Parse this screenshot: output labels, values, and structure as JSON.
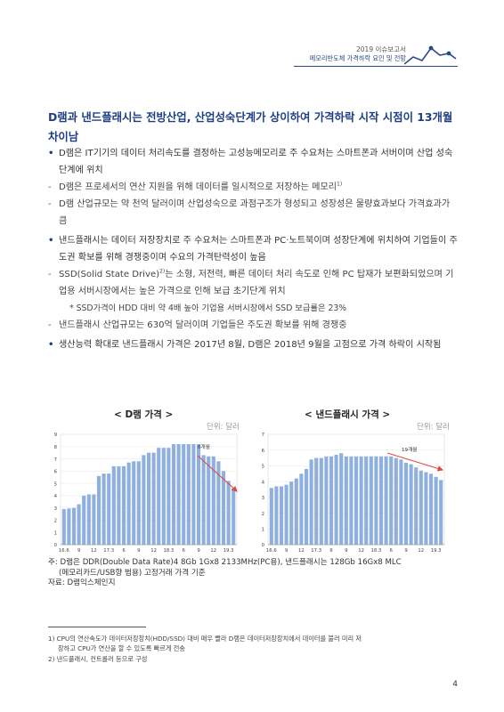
{
  "header": {
    "title": "2019 이슈보고서",
    "subtitle": "메모리반도체 가격하락 요인 및 전망",
    "accent": "#2a4a8a"
  },
  "heading": "D램과 낸드플래시는 전방산업, 산업성숙단계가 상이하여 가격하락 시작 시점이 13개월 차이남",
  "bullets": [
    {
      "kind": "bullet",
      "text": "D램은 IT기기의 데이터 처리속도를 결정하는 고성능메모리로 주 수요처는 스마트폰과 서버이며 산업 성숙단계에 위치"
    },
    {
      "kind": "dash",
      "text": "D램은 프로세서의 연산 지원을 위해 데이터를 일시적으로 저장하는 메모리",
      "sup": "1)"
    },
    {
      "kind": "dash",
      "text": "D램 산업규모는 약 천억 달러이며 산업성숙으로 과점구조가 형성되고 성장성은 물량효과보다 가격효과가 큼"
    },
    {
      "kind": "bullet",
      "text": "낸드플래시는 데이터 저장장치로 주 수요처는 스마트폰과 PC·노트북이며 성장단계에 위치하여 기업들이 주도권 확보를 위해 경쟁중이며 수요의 가격탄력성이 높음"
    },
    {
      "kind": "dash",
      "text_a": "SSD(Solid State Drive)",
      "sup": "2)",
      "text_b": "는 소형, 저전력, 빠른 데이터 처리 속도로 인해 PC 탑재가 보편화되었으며 기업용 서버시장에서는 높은 가격으로 인해 보급 초기단계 위치"
    },
    {
      "kind": "note",
      "text": "* SSD가격이 HDD 대비 약 4배 높아 기업용 서버시장에서 SSD 보급률은 23%"
    },
    {
      "kind": "dash",
      "text": "낸드플래시 산업규모는 630억 달러이며 기업들은 주도권 확보를 위해 경쟁중"
    },
    {
      "kind": "bullet",
      "text": "생산능력 확대로 낸드플래시 가격은 2017년 8월, D램은 2018년 9월을 고점으로 가격 하락이 시작됨"
    }
  ],
  "chart_data": [
    {
      "type": "bar",
      "title": "< D램 가격 >",
      "unit": "단위: 달러",
      "ylim": [
        0,
        9
      ],
      "yticks": [
        "0",
        "1",
        "2",
        "3",
        "4",
        "5",
        "6",
        "7",
        "8",
        "9"
      ],
      "xtick_labels": [
        "16.6",
        "9",
        "12",
        "17.3",
        "6",
        "9",
        "12",
        "18.3",
        "6",
        "9",
        "12",
        "19.3"
      ],
      "values": [
        2.9,
        2.95,
        3.0,
        3.3,
        4.0,
        4.1,
        4.1,
        5.6,
        5.8,
        5.8,
        6.4,
        6.4,
        6.4,
        6.7,
        6.8,
        6.8,
        7.3,
        7.5,
        7.5,
        7.9,
        7.9,
        7.9,
        8.2,
        8.2,
        8.2,
        8.2,
        8.2,
        8.2,
        7.3,
        7.2,
        7.2,
        6.8,
        6.0,
        5.2,
        4.6
      ],
      "annotation": "6개월",
      "color": "#8fb0df",
      "arrow_color": "#e04848"
    },
    {
      "type": "bar",
      "title": "< 낸드플래시 가격 >",
      "unit": "단위: 달러",
      "ylim": [
        0,
        7
      ],
      "yticks": [
        "0",
        "1",
        "2",
        "3",
        "4",
        "5",
        "6",
        "7"
      ],
      "xtick_labels": [
        "16.6",
        "9",
        "12",
        "17.3",
        "6",
        "9",
        "12",
        "18.3",
        "6",
        "9",
        "12",
        "19.3"
      ],
      "values": [
        3.6,
        3.7,
        3.7,
        3.8,
        4.0,
        4.2,
        4.5,
        4.8,
        5.4,
        5.5,
        5.5,
        5.6,
        5.6,
        5.7,
        5.8,
        5.6,
        5.6,
        5.6,
        5.6,
        5.6,
        5.6,
        5.6,
        5.6,
        5.6,
        5.6,
        5.5,
        5.4,
        5.2,
        5.1,
        4.9,
        4.7,
        4.6,
        4.5,
        4.3,
        4.1
      ],
      "annotation": "19개월",
      "color": "#8fb0df",
      "arrow_color": "#e04848"
    }
  ],
  "chart_note": {
    "line1": "주: D램은 DDR(Double Data Rate)4 8Gb 1Gx8 2133MHz(PC용), 낸드플래시는 128Gb 16Gx8 MLC",
    "line2": "(메모리카드/USB향 범용) 고정거래 가격 기준",
    "source": "자료: D램익스체인지"
  },
  "footnotes": {
    "fn1_a": "1) CPU의 연산속도가 데이터저장장치(HDD/SSD) 대비 매우 빨라 D램은 데이터저장장치에서 데이터를 불러 미리 저",
    "fn1_b": "장하고 CPU가 연산을 할 수 있도록 빠르게 전송",
    "fn2": "2) 낸드플래시, 컨트롤러 등으로 구성"
  },
  "page_number": "4"
}
